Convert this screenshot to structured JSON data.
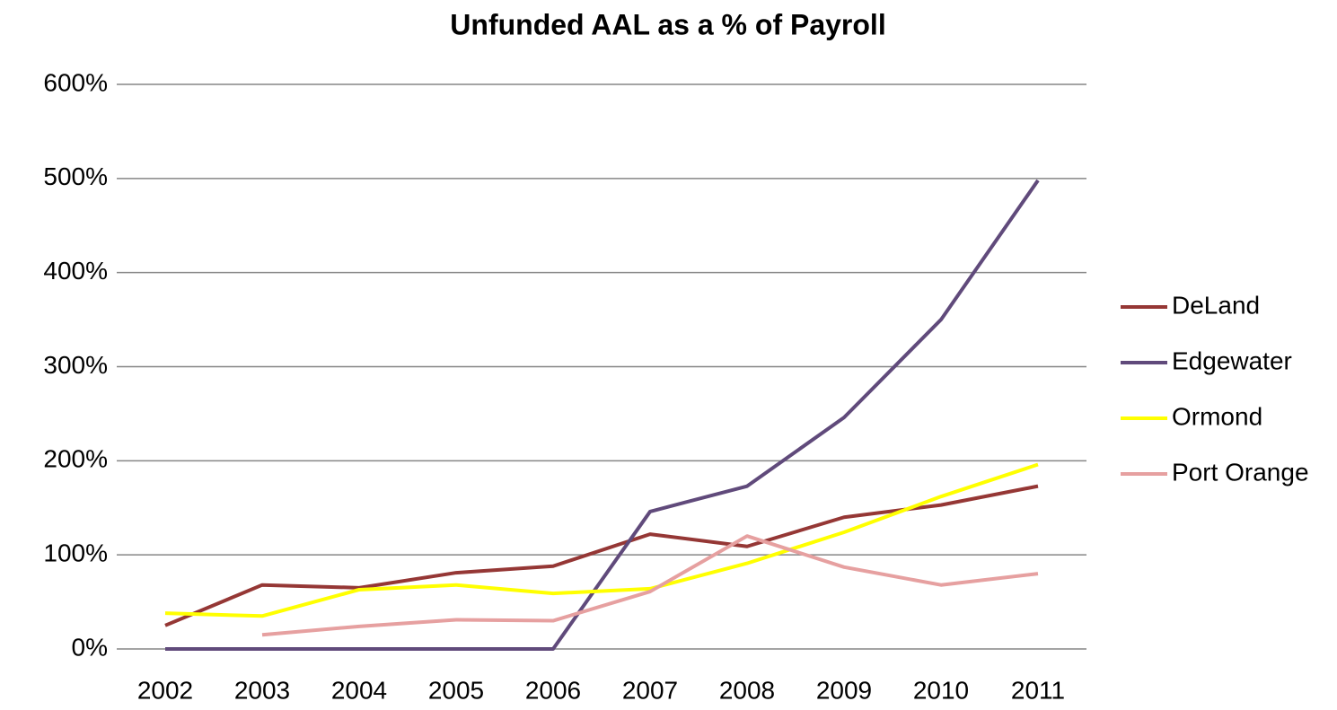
{
  "chart_data": {
    "type": "line",
    "title": "Unfunded AAL as a % of Payroll",
    "categories": [
      "2002",
      "2003",
      "2004",
      "2005",
      "2006",
      "2007",
      "2008",
      "2009",
      "2010",
      "2011"
    ],
    "series": [
      {
        "name": "DeLand",
        "color": "#953735",
        "values": [
          25,
          68,
          65,
          81,
          88,
          122,
          109,
          140,
          153,
          173
        ]
      },
      {
        "name": "Edgewater",
        "color": "#604a7b",
        "values": [
          0,
          0,
          0,
          0,
          0,
          146,
          173,
          246,
          350,
          498
        ]
      },
      {
        "name": "Ormond",
        "color": "#ffff00",
        "values": [
          38,
          35,
          63,
          68,
          59,
          64,
          91,
          124,
          162,
          196
        ]
      },
      {
        "name": "Port Orange",
        "color": "#e6a0a0",
        "values": [
          null,
          15,
          24,
          31,
          30,
          61,
          120,
          87,
          68,
          80
        ]
      }
    ],
    "ylim": [
      0,
      600
    ],
    "yticks": [
      {
        "value": 0,
        "label": "0%"
      },
      {
        "value": 100,
        "label": "100%"
      },
      {
        "value": 200,
        "label": "200%"
      },
      {
        "value": 300,
        "label": "300%"
      },
      {
        "value": 400,
        "label": "400%"
      },
      {
        "value": 500,
        "label": "500%"
      },
      {
        "value": 600,
        "label": "600%"
      }
    ],
    "grid": true,
    "legend": "right"
  }
}
